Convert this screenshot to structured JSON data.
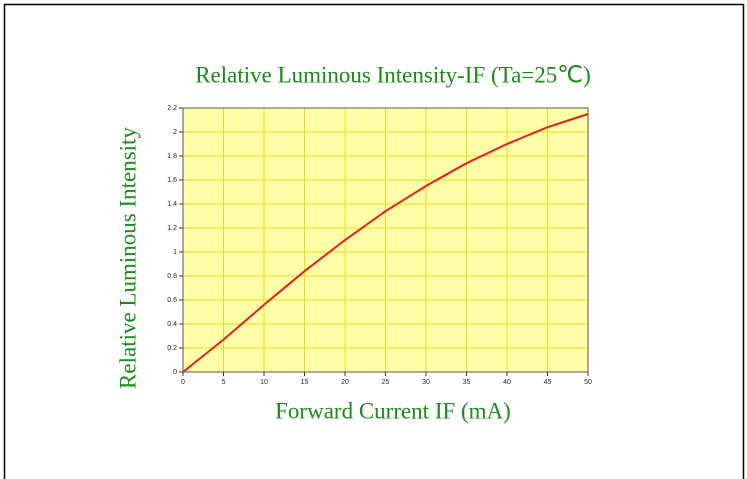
{
  "chart_data": {
    "type": "line",
    "title": "Relative Luminous Intensity-IF   (Ta=25℃)",
    "x_label": "Forward Current IF (mA)",
    "y_label": "Relative Luminous Intensity",
    "x": [
      0,
      5,
      10,
      15,
      20,
      25,
      30,
      35,
      40,
      45,
      50
    ],
    "values": [
      0,
      0.27,
      0.56,
      0.84,
      1.1,
      1.34,
      1.55,
      1.74,
      1.9,
      2.04,
      2.15
    ],
    "color": "#ee1c1c",
    "xlim": [
      0,
      50
    ],
    "xticks": [
      0,
      5,
      10,
      15,
      20,
      25,
      30,
      35,
      40,
      45,
      50
    ],
    "ylim": [
      0,
      2.2
    ],
    "yticks": [
      0,
      0.2,
      0.4,
      0.6,
      0.8,
      1,
      1.2,
      1.4,
      1.6,
      1.8,
      2,
      2.2
    ],
    "grid": true
  }
}
